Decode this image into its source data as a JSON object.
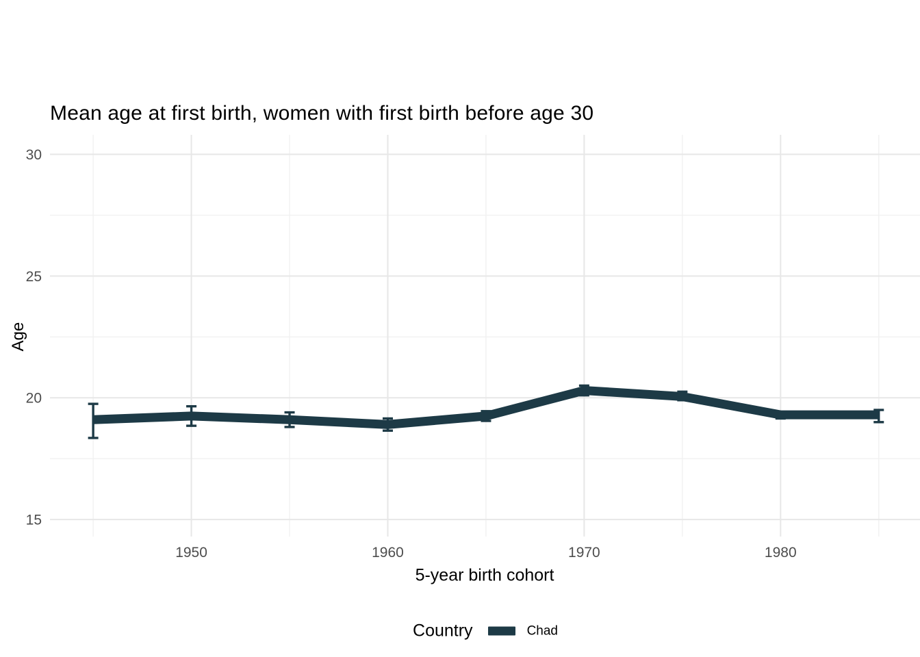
{
  "title": "Mean age at first birth, women with first birth before age 30",
  "axes": {
    "x_label": "5-year birth cohort",
    "y_label": "Age"
  },
  "legend": {
    "title": "Country",
    "items": [
      {
        "label": "Chad",
        "color": "#1d3a46"
      }
    ]
  },
  "colors": {
    "series": "#1d3a46",
    "grid_major": "#e7e7e7",
    "grid_minor": "#f1f1f1",
    "tick_text": "#4d4d4d",
    "title_text": "#000000",
    "background": "#ffffff"
  },
  "chart_data": {
    "type": "line",
    "title": "Mean age at first birth, women with first birth before age 30",
    "xlabel": "5-year birth cohort",
    "ylabel": "Age",
    "x": [
      1945,
      1950,
      1955,
      1960,
      1965,
      1970,
      1975,
      1980,
      1985
    ],
    "series": [
      {
        "name": "Chad",
        "color": "#1d3a46",
        "values": [
          19.1,
          19.25,
          19.1,
          18.9,
          19.25,
          20.3,
          20.05,
          19.3,
          19.3
        ],
        "ci_low": [
          18.35,
          18.85,
          18.8,
          18.65,
          19.05,
          20.1,
          19.9,
          19.15,
          19.0
        ],
        "ci_high": [
          19.75,
          19.65,
          19.4,
          19.15,
          19.45,
          20.5,
          20.25,
          19.42,
          19.5
        ]
      }
    ],
    "error_bars": true,
    "xlim": [
      1942.8,
      1987.1
    ],
    "ylim": [
      14.3,
      30.8
    ],
    "x_major_ticks": [
      1950,
      1960,
      1970,
      1980
    ],
    "x_minor_ticks": [
      1945,
      1955,
      1965,
      1975,
      1985
    ],
    "y_major_ticks": [
      30,
      25,
      20,
      15
    ],
    "y_minor_ticks": [
      27.5,
      22.5,
      17.5
    ],
    "grid": true,
    "legend_position": "bottom"
  }
}
